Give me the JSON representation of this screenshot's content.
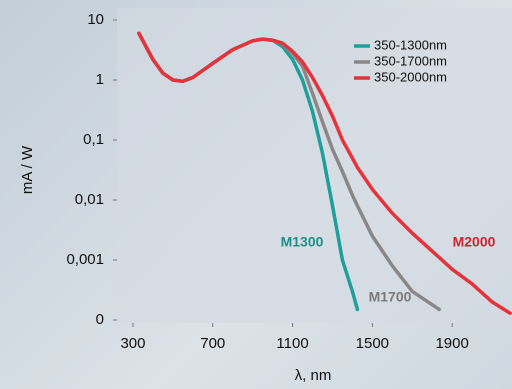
{
  "chart_data": {
    "type": "line",
    "xlabel": "λ, nm",
    "ylabel": "mA / W",
    "log_y": true,
    "legend": "upper right",
    "x": [
      330,
      400,
      450,
      500,
      550,
      600,
      700,
      800,
      900,
      950,
      1000,
      1050,
      1100,
      1150,
      1200,
      1250,
      1300,
      1350,
      1400,
      1425,
      1500,
      1600,
      1700,
      1800,
      1835,
      1900,
      2000,
      2100,
      2190
    ],
    "series": [
      {
        "name": "350-1300nm",
        "color": "#1f9e9a",
        "values": [
          6,
          2.2,
          1.3,
          1.0,
          0.95,
          1.1,
          1.9,
          3.2,
          4.5,
          4.8,
          4.6,
          3.6,
          2.2,
          1.0,
          0.3,
          0.06,
          0.008,
          0.001,
          0.0003,
          0.00015,
          null,
          null,
          null,
          null,
          null,
          null,
          null,
          null,
          null
        ]
      },
      {
        "name": "350-1700nm",
        "color": "#8a8786",
        "values": [
          6,
          2.2,
          1.3,
          1.0,
          0.95,
          1.1,
          1.9,
          3.2,
          4.5,
          4.8,
          4.6,
          4.0,
          2.8,
          1.7,
          0.6,
          0.2,
          0.07,
          0.03,
          0.012,
          0.008,
          0.0025,
          0.0008,
          0.0003,
          0.00018,
          0.00015,
          null,
          null,
          null,
          null
        ]
      },
      {
        "name": "350-2000nm",
        "color": "#e8323a",
        "values": [
          6,
          2.2,
          1.3,
          1.0,
          0.95,
          1.1,
          1.9,
          3.2,
          4.5,
          4.8,
          4.6,
          4.1,
          3.0,
          2.0,
          1.1,
          0.55,
          0.25,
          0.1,
          0.05,
          0.035,
          0.015,
          0.006,
          0.0028,
          0.0014,
          0.0011,
          0.0007,
          0.0004,
          0.0002,
          0.00013
        ]
      }
    ],
    "annotations": [
      "M1300",
      "M1700",
      "M2000"
    ],
    "xlim": [
      220,
      2200
    ],
    "xticks": [
      300,
      700,
      1100,
      1500,
      1900
    ],
    "ylim": [
      0.0001,
      10
    ],
    "yticks": [
      10,
      1,
      {
        "value": 0.1,
        "label": "0,1"
      },
      {
        "value": 0.01,
        "label": "0,01"
      },
      {
        "value": 0.001,
        "label": "0,001"
      },
      {
        "value": 0.0001,
        "label": "0"
      }
    ]
  }
}
